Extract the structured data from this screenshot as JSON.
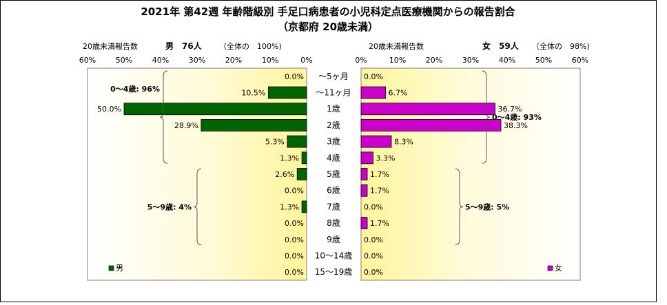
{
  "chart_data": {
    "type": "bar",
    "title": "2021年 第42週 年齢階級別 手足口病患者の小児科定点医療機関からの報告割合",
    "subtitle": "（京都府 20歳未満）",
    "categories": [
      "～5ヶ月",
      "～11ヶ月",
      "1歳",
      "2歳",
      "3歳",
      "4歳",
      "5歳",
      "6歳",
      "7歳",
      "8歳",
      "9歳",
      "10～14歳",
      "15～19歳"
    ],
    "xlim": [
      0,
      60
    ],
    "x_ticks": [
      "0%",
      "10%",
      "20%",
      "30%",
      "40%",
      "50%",
      "60%"
    ],
    "grid": false,
    "series": [
      {
        "name": "男",
        "color": "#006400",
        "values": [
          0.0,
          10.5,
          50.0,
          28.9,
          5.3,
          1.3,
          2.6,
          0.0,
          1.3,
          0.0,
          0.0,
          0.0,
          0.0
        ],
        "labels": [
          "0.0%",
          "10.5%",
          "50.0%",
          "28.9%",
          "5.3%",
          "1.3%",
          "2.6%",
          "0.0%",
          "1.3%",
          "0.0%",
          "0.0%",
          "0.0%",
          "0.0%"
        ],
        "header": {
          "caption": "20歳未満報告数",
          "count": "男　76人",
          "share": "（全体の　100%)"
        },
        "groups": [
          {
            "label": "0～4歳: 96%",
            "from": 0,
            "to": 5
          },
          {
            "label": "5～9歳: 4%",
            "from": 6,
            "to": 10
          }
        ],
        "legend": "男"
      },
      {
        "name": "女",
        "color": "#CC00CC",
        "values": [
          0.0,
          6.7,
          36.7,
          38.3,
          8.3,
          3.3,
          1.7,
          1.7,
          0.0,
          1.7,
          0.0,
          0.0,
          0.0
        ],
        "labels": [
          "0.0%",
          "6.7%",
          "36.7%",
          "38.3%",
          "8.3%",
          "3.3%",
          "1.7%",
          "1.7%",
          "0.0%",
          "1.7%",
          "0.0%",
          "0.0%",
          "0.0%"
        ],
        "header": {
          "caption": "20歳未満報告数",
          "count": "女　59人",
          "share": "（全体の　98%)"
        },
        "groups": [
          {
            "label": "0～4歳: 93%",
            "from": 0,
            "to": 5
          },
          {
            "label": "5～9歳: 5%",
            "from": 6,
            "to": 10
          }
        ],
        "legend": "女"
      }
    ]
  }
}
